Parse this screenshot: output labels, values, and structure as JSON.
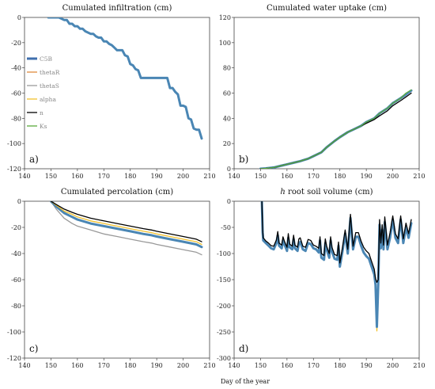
{
  "figure": {
    "xlabel": "Day of the year"
  },
  "legend": {
    "panel": "a",
    "entries": [
      {
        "name": "C5B",
        "color": "#3f6fae"
      },
      {
        "name": "thetaR",
        "color": "#e08a3c"
      },
      {
        "name": "thetaS",
        "color": "#9a9a9a"
      },
      {
        "name": "alpha",
        "color": "#f2c12e"
      },
      {
        "name": "n",
        "color": "#000000"
      },
      {
        "name": "Ks",
        "color": "#5aaa3c"
      }
    ]
  },
  "chart_data": [
    {
      "id": "a",
      "type": "line",
      "title": "Cumulated infiltration (cm)",
      "panel_label": "a)",
      "xlim": [
        140,
        210
      ],
      "ylim": [
        -120,
        0
      ],
      "xticks": [
        140,
        150,
        160,
        170,
        180,
        190,
        200,
        210
      ],
      "yticks": [
        -120,
        -100,
        -80,
        -60,
        -40,
        -20,
        0
      ],
      "series": [
        {
          "name": "C5B",
          "color": "#4a86b4",
          "x": [
            149,
            150,
            153,
            155,
            156,
            157,
            158,
            159,
            160,
            161,
            162,
            163,
            165,
            166,
            167,
            168,
            169,
            170,
            171,
            172,
            173,
            174,
            175,
            177,
            178,
            179,
            180,
            181,
            182,
            183,
            184,
            185,
            186,
            189,
            194,
            195,
            196,
            197,
            198,
            199,
            200,
            201,
            202,
            203,
            204,
            205,
            206,
            207
          ],
          "y": [
            0,
            0,
            0,
            -2,
            -2,
            -5,
            -5,
            -7,
            -7,
            -9,
            -9,
            -11,
            -13,
            -13,
            -15,
            -16,
            -16,
            -19,
            -19,
            -21,
            -22,
            -24,
            -26,
            -26,
            -30,
            -31,
            -37,
            -38,
            -41,
            -42,
            -48,
            -48,
            -48,
            -48,
            -48,
            -56,
            -56,
            -59,
            -61,
            -70,
            -70,
            -71,
            -80,
            -81,
            -88,
            -89,
            -89,
            -96
          ]
        }
      ]
    },
    {
      "id": "b",
      "type": "line",
      "title": "Cumulated water uptake (cm)",
      "panel_label": "b)",
      "xlim": [
        140,
        210
      ],
      "ylim": [
        0,
        120
      ],
      "xticks": [
        140,
        150,
        160,
        170,
        180,
        190,
        200,
        210
      ],
      "yticks": [
        0,
        20,
        40,
        60,
        80,
        100,
        120
      ],
      "series": [
        {
          "name": "C5B",
          "color": "#4a86b4",
          "x": [
            150,
            152,
            155,
            158,
            160,
            163,
            165,
            168,
            170,
            173,
            175,
            178,
            180,
            183,
            185,
            188,
            190,
            193,
            195,
            198,
            200,
            203,
            205,
            207
          ],
          "y": [
            0,
            0.3,
            1,
            2.5,
            3.5,
            5,
            6,
            8,
            10,
            13,
            17,
            22,
            25,
            29,
            31,
            34,
            37,
            40,
            44,
            48,
            52,
            56,
            59,
            62
          ]
        },
        {
          "name": "n",
          "color": "#000000",
          "x": [
            150,
            152,
            155,
            158,
            160,
            163,
            165,
            168,
            170,
            173,
            175,
            178,
            180,
            183,
            185,
            188,
            190,
            193,
            195,
            198,
            200,
            203,
            205,
            207
          ],
          "y": [
            0,
            0.3,
            1,
            2.5,
            3.5,
            5,
            6,
            8,
            10,
            13,
            17,
            22,
            25,
            29,
            31,
            34,
            36,
            39,
            42,
            46,
            50,
            54,
            57,
            60
          ]
        },
        {
          "name": "Ks",
          "color": "#5aaa3c",
          "x": [
            150,
            152,
            155,
            158,
            160,
            163,
            165,
            168,
            170,
            173,
            175,
            178,
            180,
            183,
            185,
            188,
            190,
            193,
            195,
            198,
            200,
            203,
            205,
            207
          ],
          "y": [
            0,
            0.3,
            1,
            2.5,
            3.5,
            5,
            6,
            8,
            10,
            13,
            17,
            22,
            25,
            29,
            31,
            34,
            37,
            40,
            44,
            48,
            52,
            56,
            60,
            62.5
          ]
        }
      ]
    },
    {
      "id": "c",
      "type": "line",
      "title": "Cumulated percolation (cm)",
      "panel_label": "c)",
      "xlim": [
        140,
        210
      ],
      "ylim": [
        -120,
        0
      ],
      "xticks": [
        140,
        150,
        160,
        170,
        180,
        190,
        200,
        210
      ],
      "yticks": [
        -120,
        -100,
        -80,
        -60,
        -40,
        -20,
        0
      ],
      "series": [
        {
          "name": "thetaS",
          "color": "#9a9a9a",
          "x": [
            150,
            152,
            155,
            158,
            160,
            165,
            170,
            175,
            180,
            185,
            188,
            190,
            195,
            200,
            205,
            207
          ],
          "y": [
            0,
            -6,
            -13,
            -17,
            -19,
            -22,
            -25,
            -27,
            -29,
            -31,
            -32,
            -33,
            -35,
            -37,
            -39,
            -41
          ]
        },
        {
          "name": "C5B",
          "color": "#4a86b4",
          "x": [
            150,
            152,
            155,
            158,
            160,
            165,
            170,
            175,
            180,
            185,
            188,
            190,
            195,
            200,
            205,
            207
          ],
          "y": [
            0,
            -4,
            -9,
            -12,
            -14,
            -17,
            -19,
            -21,
            -23,
            -25,
            -26,
            -27,
            -29,
            -31,
            -33,
            -35
          ]
        },
        {
          "name": "alpha",
          "color": "#f2c12e",
          "x": [
            150,
            152,
            155,
            158,
            160,
            165,
            170,
            175,
            180,
            185,
            188,
            190,
            195,
            200,
            205,
            207
          ],
          "y": [
            0,
            -3,
            -7.5,
            -10,
            -12,
            -15,
            -17,
            -19,
            -21,
            -23,
            -24,
            -25,
            -27,
            -29,
            -31,
            -33
          ]
        },
        {
          "name": "n",
          "color": "#000000",
          "x": [
            150,
            152,
            155,
            158,
            160,
            165,
            170,
            175,
            180,
            185,
            188,
            190,
            195,
            200,
            205,
            207
          ],
          "y": [
            0,
            -2.5,
            -6,
            -8.5,
            -10,
            -13,
            -15,
            -17,
            -19,
            -21,
            -22,
            -23,
            -25,
            -27,
            -29,
            -31
          ]
        }
      ]
    },
    {
      "id": "d",
      "type": "line",
      "title": "root soil volume (cm)",
      "title_italic": "h",
      "panel_label": "d)",
      "xlim": [
        140,
        210
      ],
      "ylim": [
        -300,
        0
      ],
      "xticks": [
        140,
        150,
        160,
        170,
        180,
        190,
        200,
        210
      ],
      "yticks": [
        -300,
        -250,
        -200,
        -150,
        -100,
        -50,
        0
      ],
      "series": [
        {
          "name": "alpha",
          "color": "#f2c12e",
          "x": [
            193.6,
            194,
            194.4
          ],
          "y": [
            -190,
            -248,
            -190
          ]
        },
        {
          "name": "C5B",
          "color": "#4a86b4",
          "x": [
            150.5,
            150.8,
            151,
            152,
            153,
            154,
            155,
            156,
            156.5,
            157,
            158,
            158.5,
            159,
            160,
            160.5,
            161,
            162,
            162.5,
            163,
            164,
            164.5,
            165,
            166,
            167,
            168,
            169,
            170,
            171,
            172,
            172.5,
            173,
            174,
            174.5,
            175,
            176,
            176.5,
            177,
            178,
            179,
            179.5,
            180,
            181,
            182,
            183,
            184,
            185,
            186,
            187,
            188,
            189,
            190,
            191,
            192,
            193,
            193.5,
            194,
            194.5,
            195,
            195.5,
            196,
            196.5,
            197,
            198,
            199,
            200,
            201,
            202,
            203,
            204,
            205,
            206,
            207
          ],
          "y": [
            0,
            -60,
            -75,
            -80,
            -85,
            -90,
            -92,
            -80,
            -65,
            -85,
            -90,
            -75,
            -82,
            -95,
            -70,
            -88,
            -92,
            -72,
            -90,
            -95,
            -80,
            -78,
            -92,
            -95,
            -80,
            -82,
            -90,
            -92,
            -98,
            -75,
            -108,
            -112,
            -80,
            -92,
            -108,
            -75,
            -96,
            -110,
            -112,
            -85,
            -125,
            -95,
            -62,
            -100,
            -32,
            -92,
            -68,
            -68,
            -85,
            -98,
            -105,
            -110,
            -125,
            -140,
            -160,
            -240,
            -160,
            -45,
            -90,
            -55,
            -92,
            -40,
            -92,
            -70,
            -35,
            -70,
            -80,
            -35,
            -80,
            -50,
            -70,
            -42
          ]
        },
        {
          "name": "n",
          "color": "#000000",
          "x": [
            150.5,
            150.8,
            151,
            152,
            153,
            154,
            155,
            156,
            156.5,
            157,
            158,
            158.5,
            159,
            160,
            160.5,
            161,
            162,
            162.5,
            163,
            164,
            164.5,
            165,
            166,
            167,
            168,
            169,
            170,
            171,
            172,
            172.5,
            173,
            174,
            174.5,
            175,
            176,
            176.5,
            177,
            178,
            179,
            179.5,
            180,
            181,
            182,
            183,
            184,
            185,
            186,
            187,
            188,
            189,
            190,
            191,
            192,
            193,
            193.5,
            194,
            194.5,
            195,
            195.5,
            196,
            196.5,
            197,
            198,
            199,
            200,
            201,
            202,
            203,
            204,
            205,
            206,
            207
          ],
          "y": [
            0,
            -55,
            -70,
            -76,
            -80,
            -85,
            -86,
            -74,
            -58,
            -80,
            -84,
            -68,
            -76,
            -88,
            -62,
            -82,
            -86,
            -65,
            -84,
            -88,
            -72,
            -70,
            -86,
            -88,
            -73,
            -75,
            -84,
            -86,
            -90,
            -68,
            -100,
            -104,
            -72,
            -86,
            -100,
            -68,
            -88,
            -102,
            -104,
            -78,
            -118,
            -88,
            -55,
            -92,
            -25,
            -86,
            -60,
            -60,
            -76,
            -88,
            -95,
            -100,
            -115,
            -130,
            -148,
            -155,
            -150,
            -35,
            -80,
            -45,
            -84,
            -30,
            -84,
            -60,
            -28,
            -62,
            -72,
            -28,
            -72,
            -42,
            -62,
            -35
          ]
        }
      ]
    }
  ]
}
